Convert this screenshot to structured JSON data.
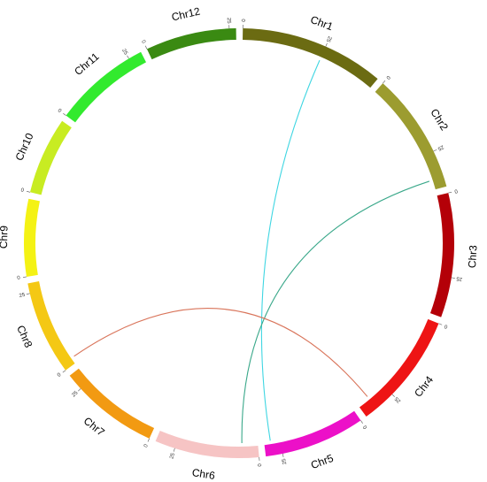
{
  "chromosomes": [
    {
      "name": "Chr1",
      "length": 43,
      "color": "#6b6b12"
    },
    {
      "name": "Chr2",
      "length": 36,
      "color": "#9c9c30"
    },
    {
      "name": "Chr3",
      "length": 37,
      "color": "#b40008"
    },
    {
      "name": "Chr4",
      "length": 35,
      "color": "#ee1414"
    },
    {
      "name": "Chr5",
      "length": 30,
      "color": "#ec10c8"
    },
    {
      "name": "Chr6",
      "length": 31,
      "color": "#f6c4c4"
    },
    {
      "name": "Chr7",
      "length": 30,
      "color": "#f29a12"
    },
    {
      "name": "Chr8",
      "length": 28,
      "color": "#f4c814"
    },
    {
      "name": "Chr9",
      "length": 23,
      "color": "#f4f214"
    },
    {
      "name": "Chr10",
      "length": 23,
      "color": "#c8ec22"
    },
    {
      "name": "Chr11",
      "length": 29,
      "color": "#32ea2e"
    },
    {
      "name": "Chr12",
      "length": 27,
      "color": "#3a8a12"
    }
  ],
  "ticks": [
    0,
    25
  ],
  "links": [
    {
      "from": {
        "chr": 0,
        "pos": 25
      },
      "to": {
        "chr": 4,
        "pos": 28
      },
      "color": "#3fd6e2"
    },
    {
      "from": {
        "chr": 1,
        "pos": 33
      },
      "to": {
        "chr": 5,
        "pos": 5
      },
      "color": "#3aa88a"
    },
    {
      "from": {
        "chr": 7,
        "pos": 2
      },
      "to": {
        "chr": 3,
        "pos": 31
      },
      "color": "#d9745a"
    }
  ]
}
